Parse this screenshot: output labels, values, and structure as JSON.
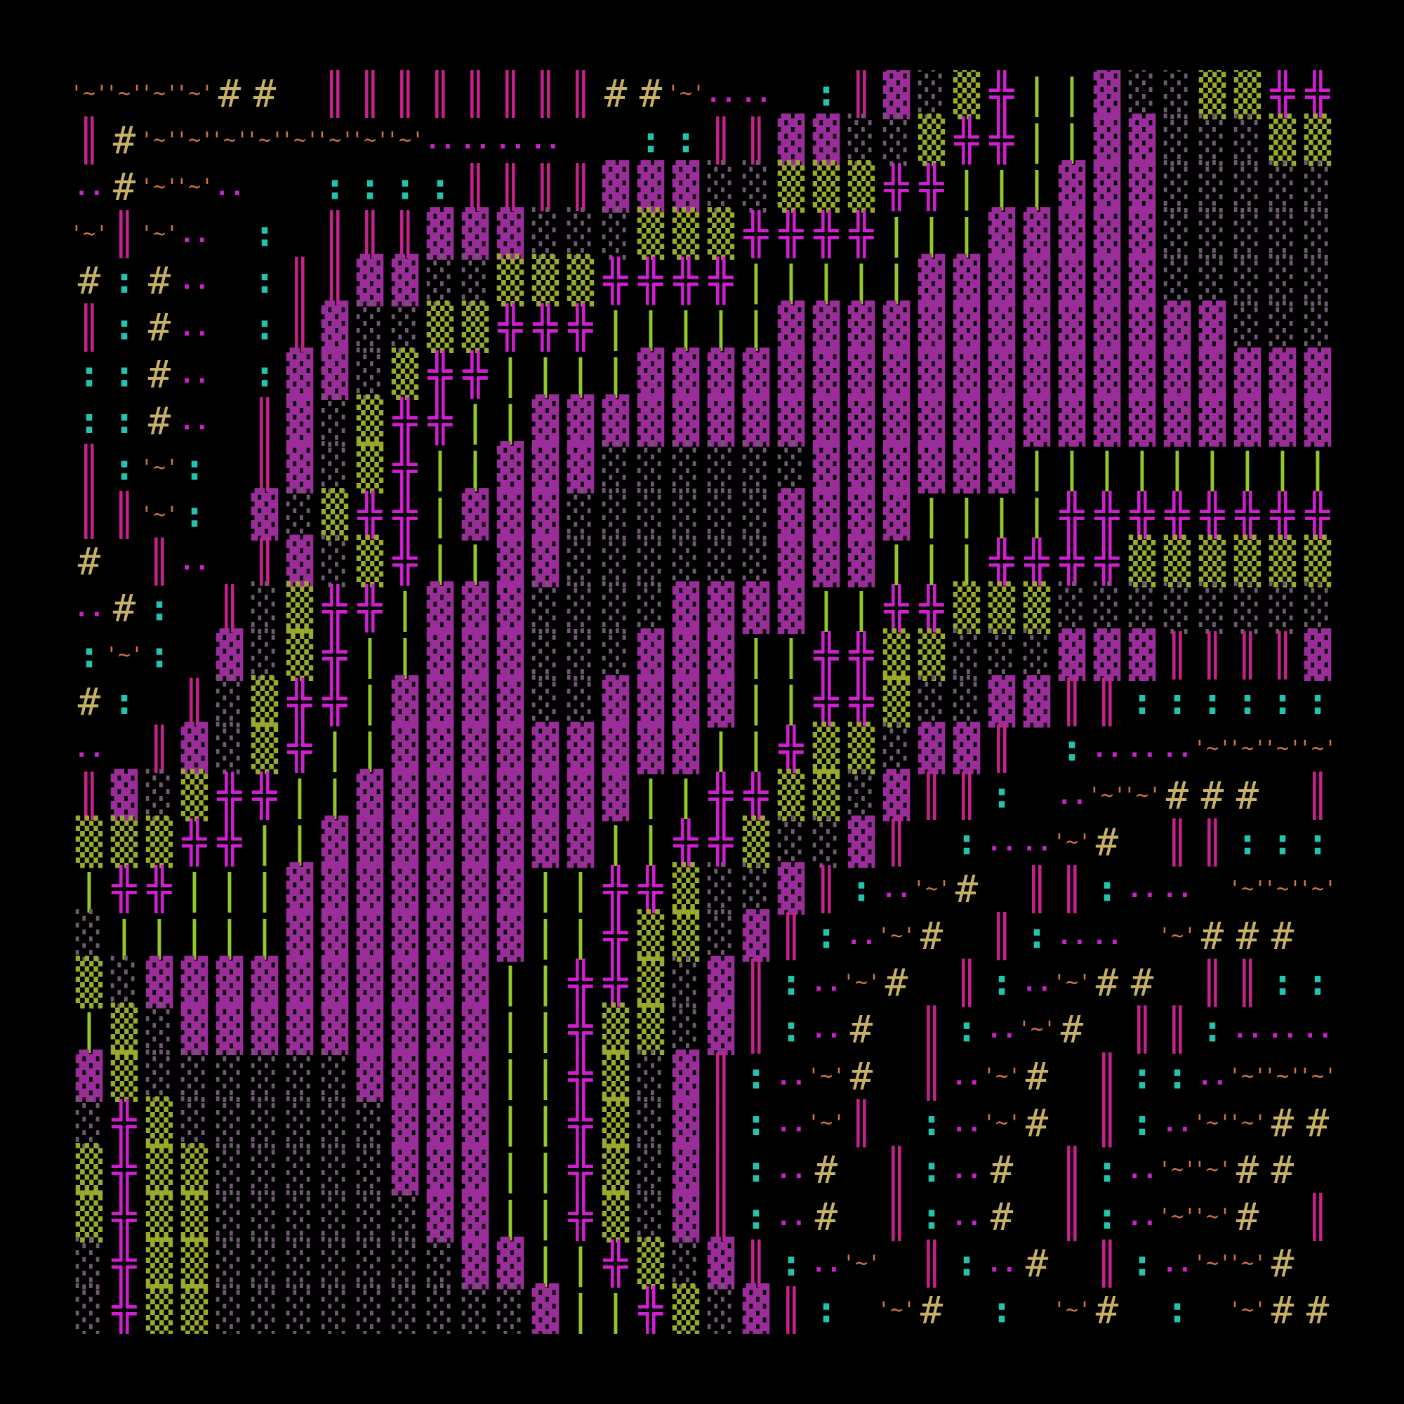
{
  "glyphs": {
    "M": {
      "text": "▓",
      "color": "#9b2d9b"
    },
    "D": {
      "text": "░",
      "color": "#6e5a70"
    },
    "G": {
      "text": "▒",
      "color": "#9aab2c"
    },
    "H": {
      "text": "╬",
      "color": "#d21ed2"
    },
    "V": {
      "text": "|",
      "color": "#94c828"
    },
    "P": {
      "text": "║",
      "color": "#c8208c"
    },
    "C": {
      "text": ":",
      "color": "#22c4b0"
    },
    "O": {
      "text": "'~'",
      "color": "#d27444"
    },
    "Y": {
      "text": "#",
      "color": "#c8b064"
    },
    "d": {
      "text": "..",
      "color": "#c822c8"
    }
  },
  "rows": [
    "OOOOYY PPPPPPPPYYOdd CPMDGHVVMDDGGHHHH",
    "PYOOOOOOOOdddd  CCPPMMDDGHHVVMMDDDGGGG",
    "dYOOd  CCCCPPPPMMMDDGGGHHVVVMMMDDDDDDD",
    "OPOd C PPPMMMDDDGGGHHHHVVVMMMMMDDDDDDD",
    "YCYd CPPMMDDGGGHHHHVVVVVMMMMMMMDDDDDDD",
    "PCYd CPMDDGGHHHVVVVVMMMMMMMMMMMMMDDDDD",
    "CCYd CMMDGHHVVVVMMMMMMMMMMMMMMMMMMMMDDD",
    "CCYd PMDGHHVVMMMMMMMMMMMMMMMMMMMMMMMMM",
    "PCOC PMDGHVVMMMDDDDDDMMMMMMVVVVVVVVVVV",
    "PPOC MDGHHVMMMDDDDDDMMMMVVVVHHHHHHHHV",
    "Y Pd PMDGHVVMMDDDDDDMMMVVVHHHHGGGGGGG",
    "dYC PDGHHVMMMDDDDMMMMVVHHGGGDDDDDDDD",
    "COC MDGHVVMMMDDDMMMVVHHGGDDDMMMPPPPMM",
    "YC PDGHHVMMMMDDMMMMVVHHGDDMMPPCCCCCCC",
    "d PMDGHVVMMMMMMMMMVVHGGDMMP CdddOOOOOO",
    "PMDGHHVVMMMMMMMMVVHHGGDMPPC dOOYYY PPPPY",
    "GGGHHVVMMMMMMMMVVHHGDDMP CddOY PPCCCCCC",
    "VHHVVVMMMMMMMVVHHGDDMPCdOY PPCdd OOOOOO",
    "DVVVVVMMMMMMMVVHGGDMPCdOY PCdd OYYY PPP",
    "GDMMMMMMMMMMVVHHGDMPCdOY PCdOYY PPCCCC",
    "VGDMMMMMMMMMVVHGGDMPCdY PCdOY PPCdddddd",
    "MGDDDDDDMMMMVVHGDMPCdOY PdOY PCCdOOOOOO",
    "DHGDDDDDDMMMVVHGDMPCdOP CdOY PCdOOYYYYY",
    "GHGGDDDDDMMMVVHGDMPCdY PCdY PCdOOYY PPP",
    "GHGGDDDDDDMMVVHGDMPCdY PCdY PCdOOY PPPP",
    "DHGGDDDDDDDMMVVHGDMPCdO PCdY PCdOOY PPPP",
    "DHGGDDDDDDDDDMVVHGDMPC OY C OY C OYY PPP"
  ]
}
